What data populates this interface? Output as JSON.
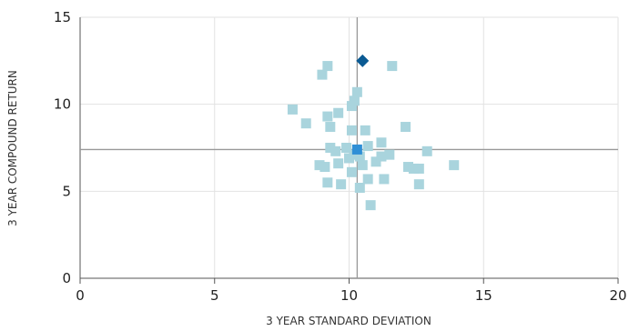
{
  "chart_data": {
    "type": "scatter",
    "title": "",
    "xlabel": "3 YEAR STANDARD DEVIATION",
    "ylabel": "3 YEAR COMPOUND RETURN",
    "xlim": [
      0,
      20
    ],
    "ylim": [
      0,
      15
    ],
    "xticks": [
      0,
      5,
      10,
      15,
      20
    ],
    "yticks": [
      0,
      5,
      10,
      15
    ],
    "grid": true,
    "legend": "none",
    "colors": {
      "peers": "#a9d4dd",
      "average": "#2f8fd6",
      "highlight": "#0b5a93",
      "reference_lines": "#999999",
      "grid": "#e2e2e2",
      "axis": "#555555"
    },
    "reference_lines": {
      "x": 10.3,
      "y": 7.4
    },
    "series": [
      {
        "marker": "square",
        "color": "#a9d4dd",
        "points": [
          [
            7.9,
            9.7
          ],
          [
            8.4,
            8.9
          ],
          [
            9.0,
            11.7
          ],
          [
            9.2,
            12.2
          ],
          [
            9.2,
            9.3
          ],
          [
            9.3,
            8.7
          ],
          [
            9.6,
            9.5
          ],
          [
            10.1,
            9.9
          ],
          [
            10.2,
            10.2
          ],
          [
            10.3,
            10.7
          ],
          [
            11.6,
            12.2
          ],
          [
            12.1,
            8.7
          ],
          [
            8.9,
            6.5
          ],
          [
            9.1,
            6.4
          ],
          [
            9.2,
            5.5
          ],
          [
            9.3,
            7.5
          ],
          [
            9.5,
            7.3
          ],
          [
            9.6,
            6.6
          ],
          [
            9.7,
            5.4
          ],
          [
            9.9,
            7.5
          ],
          [
            10.0,
            6.9
          ],
          [
            10.1,
            6.1
          ],
          [
            10.1,
            8.5
          ],
          [
            10.2,
            7.1
          ],
          [
            10.4,
            7.0
          ],
          [
            10.5,
            6.5
          ],
          [
            10.6,
            8.5
          ],
          [
            10.7,
            7.6
          ],
          [
            10.4,
            5.2
          ],
          [
            10.7,
            5.7
          ],
          [
            10.8,
            4.2
          ],
          [
            11.0,
            6.7
          ],
          [
            11.2,
            7.8
          ],
          [
            11.2,
            7.0
          ],
          [
            11.3,
            5.7
          ],
          [
            11.5,
            7.1
          ],
          [
            12.2,
            6.4
          ],
          [
            12.4,
            6.3
          ],
          [
            12.6,
            6.3
          ],
          [
            12.6,
            5.4
          ],
          [
            12.9,
            7.3
          ],
          [
            13.9,
            6.5
          ]
        ]
      },
      {
        "marker": "square",
        "color": "#2f8fd6",
        "points": [
          [
            10.3,
            7.4
          ]
        ]
      },
      {
        "marker": "diamond",
        "color": "#0b5a93",
        "points": [
          [
            10.5,
            12.5
          ]
        ]
      }
    ]
  }
}
